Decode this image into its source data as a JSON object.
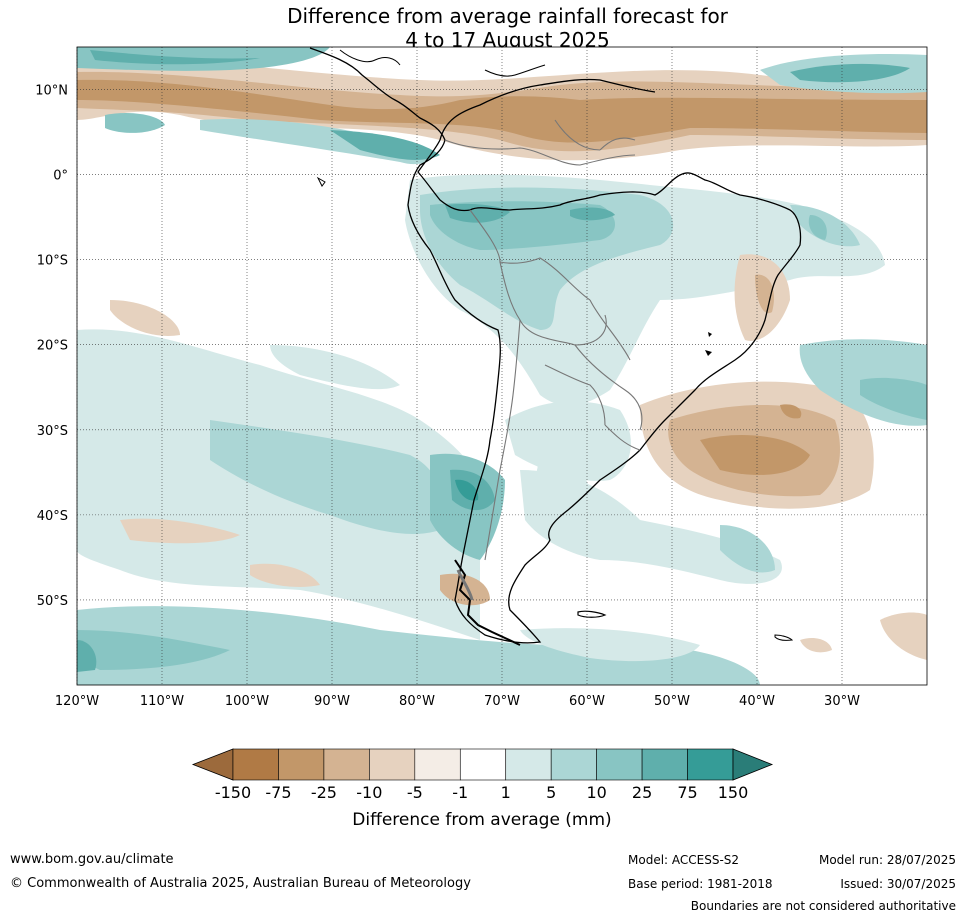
{
  "title_line1": "Difference from average rainfall forecast for",
  "title_line2": "4 to 17 August 2025",
  "lat_labels": [
    "10°N",
    "0°",
    "10°S",
    "20°S",
    "30°S",
    "40°S",
    "50°S"
  ],
  "lat_values": [
    10,
    0,
    -10,
    -20,
    -30,
    -40,
    -50
  ],
  "lon_labels": [
    "120°W",
    "110°W",
    "100°W",
    "90°W",
    "80°W",
    "70°W",
    "60°W",
    "50°W",
    "40°W",
    "30°W"
  ],
  "lon_values": [
    -120,
    -110,
    -100,
    -90,
    -80,
    -70,
    -60,
    -50,
    -40,
    -30
  ],
  "map_extent": {
    "lon_min": -120,
    "lon_max": -20,
    "lat_min": -60,
    "lat_max": 15
  },
  "legend": {
    "title": "Difference from average (mm)",
    "tick_labels": [
      "-150",
      "-75",
      "-25",
      "-10",
      "-5",
      "-1",
      "1",
      "5",
      "10",
      "25",
      "75",
      "150"
    ],
    "colors": [
      "#9c6a3c",
      "#b07a45",
      "#c29769",
      "#d4b392",
      "#e6d2bf",
      "#f4ede6",
      "#ffffff",
      "#d5e9e8",
      "#abd6d5",
      "#88c5c3",
      "#5fafac",
      "#359c97",
      "#2a7d78"
    ]
  },
  "footer": {
    "website": "www.bom.gov.au/climate",
    "copyright": "© Commonwealth of Australia 2025, Australian Bureau of Meteorology",
    "model": "Model: ACCESS-S2",
    "base_period": "Base period: 1981-2018",
    "model_run": "Model run: 28/07/2025",
    "issued": "Issued: 30/07/2025",
    "disclaimer": "Boundaries are not considered authoritative"
  }
}
